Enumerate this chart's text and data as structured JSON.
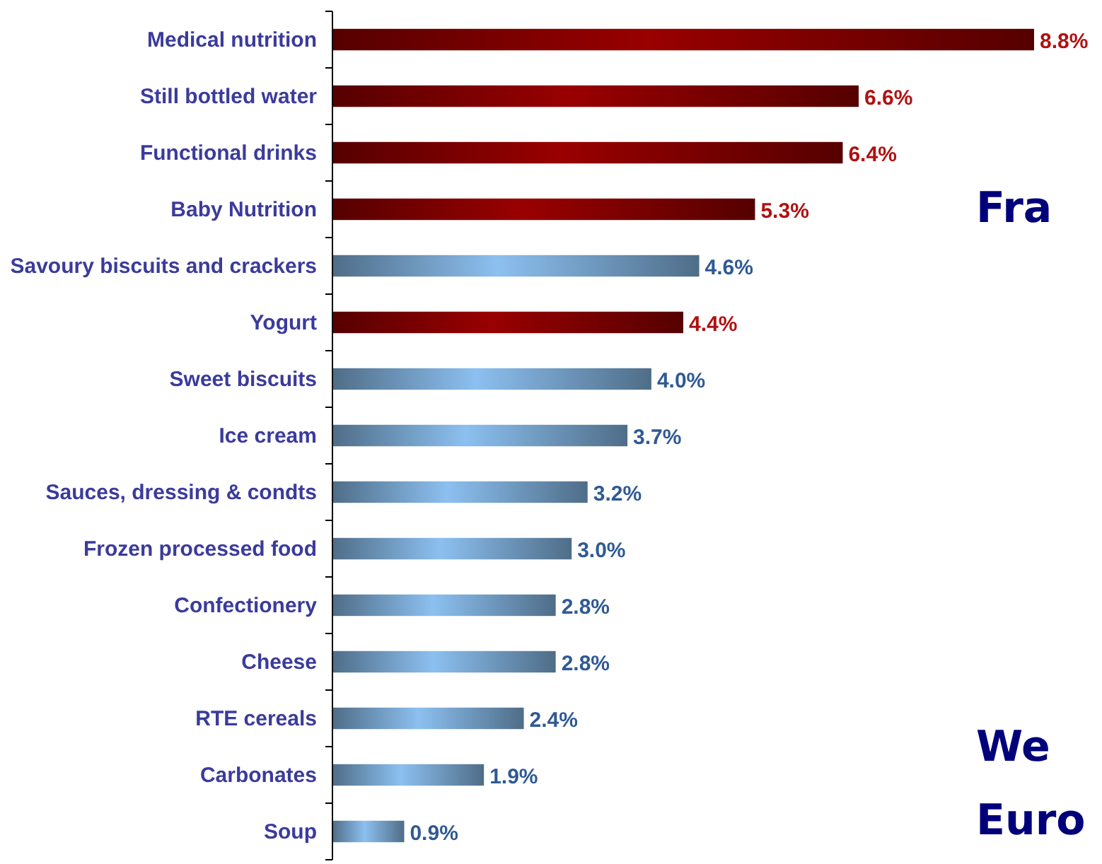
{
  "chart_data": {
    "type": "bar",
    "orientation": "horizontal",
    "categories": [
      "Medical nutrition",
      "Still bottled water",
      "Functional drinks",
      "Baby Nutrition",
      "Savoury biscuits and crackers",
      "Yogurt",
      "Sweet biscuits",
      "Ice cream",
      "Sauces, dressing & condts",
      "Frozen processed food",
      "Confectionery",
      "Cheese",
      "RTE cereals",
      "Carbonates",
      "Soup"
    ],
    "values": [
      8.8,
      6.6,
      6.4,
      5.3,
      4.6,
      4.4,
      4.0,
      3.7,
      3.2,
      3.0,
      2.8,
      2.8,
      2.4,
      1.9,
      0.9
    ],
    "colors": [
      "#990000",
      "#990000",
      "#990000",
      "#990000",
      "#8cc0f0",
      "#990000",
      "#8cc0f0",
      "#8cc0f0",
      "#8cc0f0",
      "#8cc0f0",
      "#8cc0f0",
      "#8cc0f0",
      "#8cc0f0",
      "#8cc0f0",
      "#8cc0f0"
    ],
    "value_labels": [
      "8.8%",
      "6.6%",
      "6.4%",
      "5.3%",
      "4.6%",
      "4.4%",
      "4.0%",
      "3.7%",
      "3.2%",
      "3.0%",
      "2.8%",
      "2.8%",
      "2.4%",
      "1.9%",
      "0.9%"
    ],
    "annotations": [
      "Fra",
      "We",
      "Euro"
    ]
  }
}
